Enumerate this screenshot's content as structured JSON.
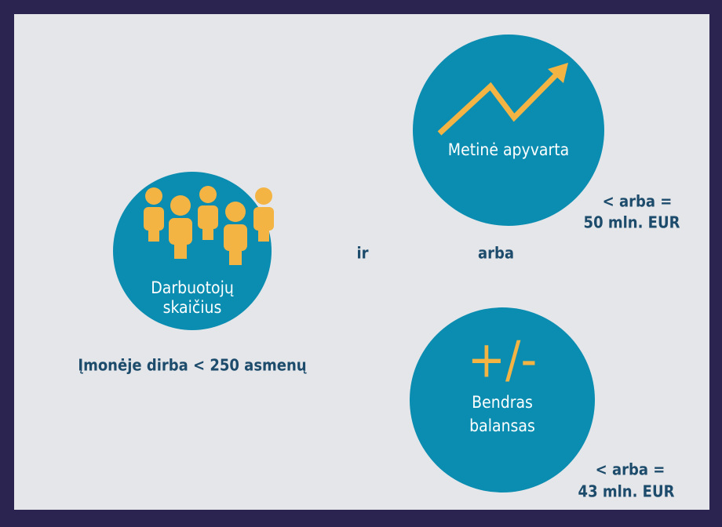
{
  "employees": {
    "label": [
      "Darbuotojų",
      "skaičius"
    ],
    "condition": "Įmonėje dirba < 250 asmenų"
  },
  "connectors": {
    "and": "ir",
    "or": "arba"
  },
  "turnover": {
    "label": "Metinė apyvarta",
    "condition": "< arba =",
    "threshold": "50 mln. EUR"
  },
  "balance": {
    "symbol": "+/-",
    "label": [
      "Bendras",
      "balansas"
    ],
    "condition": "< arba =",
    "threshold": "43 mln. EUR"
  }
}
